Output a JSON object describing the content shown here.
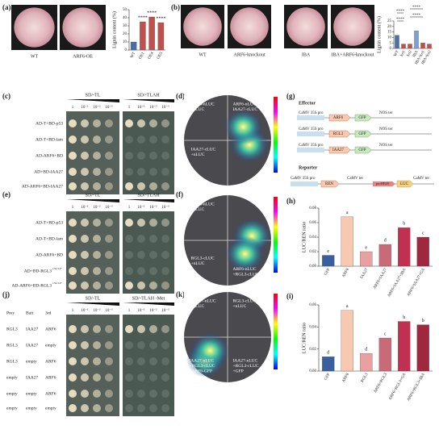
{
  "panels": {
    "a": {
      "label": "(a)",
      "photos": [
        "WT",
        "ARF6-OE"
      ],
      "chart": {
        "type": "bar",
        "ylabel": "Lignin content (%)",
        "categories": [
          "WT",
          "OE1",
          "OE4",
          "OE5"
        ],
        "values": [
          10,
          35,
          41,
          34
        ],
        "colors": [
          "#4a6fa8",
          "#c0504d",
          "#c0504d",
          "#c0504d"
        ],
        "ylim": [
          0,
          50
        ],
        "yticks": [
          0,
          10,
          20,
          30,
          40,
          50
        ],
        "annotations": [
          null,
          "****",
          "****",
          "****"
        ]
      }
    },
    "b": {
      "label": "(b)",
      "photos": [
        "WT",
        "ARF6-knockout",
        "IBA",
        "IBA+ARF6-knockout"
      ],
      "chart": {
        "type": "bar",
        "ylabel": "Lignin content (%)",
        "categories": [
          "WT",
          "ko1",
          "ko2",
          "IBA",
          "IBA+ko1",
          "IBA+ko2"
        ],
        "values": [
          12,
          4,
          4,
          16,
          5,
          4
        ],
        "colors": [
          "#4a6fa8",
          "#c0504d",
          "#c0504d",
          "#7f9fd0",
          "#c0504d",
          "#c0504d"
        ],
        "ylim": [
          0,
          25
        ],
        "yticks": [
          0,
          5,
          10,
          15,
          20,
          25
        ],
        "comparisons": [
          "****",
          "****",
          "****",
          "****"
        ]
      }
    },
    "c": {
      "label": "(c)",
      "media": [
        "SD/-TL",
        "SD/-TLAH"
      ],
      "dilutions": [
        "1",
        "10⁻¹",
        "10⁻²",
        "10⁻³"
      ],
      "rows": [
        "AD-T+BD-p53",
        "AD-T+BD-lam",
        "AD-ARF6+BD",
        "AD+BD-IAA27",
        "AD-ARF6+BD-IAA27"
      ]
    },
    "d": {
      "label": "(d)",
      "quadrants": [
        [
          "ARF6-nLUC",
          "+cLUC"
        ],
        [
          "ARF6-nLUC+",
          "IAA27-cLUC"
        ],
        [
          "IAA27-cLUC",
          "+nLUC"
        ]
      ]
    },
    "g": {
      "label": "(g)",
      "effector": "Effector",
      "constructs": [
        [
          "CaMV 35S pro",
          "ARF6",
          "GFP",
          "NOS ter"
        ],
        [
          "CaMV 35S pro",
          "RGL3",
          "GFP",
          "NOS ter"
        ],
        [
          "CaMV 35S pro",
          "IAA27",
          "GFP",
          "NOS ter"
        ]
      ],
      "reporter": "Reporter",
      "reporter_construct": [
        "CaMV 35S pro",
        "REN",
        "CaMV ter",
        "proHB49",
        "LUC",
        "CaMV ter"
      ]
    },
    "e": {
      "label": "(e)",
      "media": [
        "SD/-TL",
        "SD/-TLAH"
      ],
      "dilutions": [
        "1",
        "10⁻¹",
        "10⁻²",
        "10⁻³"
      ],
      "rows": [
        "AD-T+BD-p53",
        "AD-T+BD-lam",
        "AD-ARF6+BD",
        "AD+BD-RGL3",
        "AD-ARF6+BD-RGL3"
      ],
      "rows_sup": [
        null,
        null,
        null,
        "132-547",
        "132-547"
      ]
    },
    "f": {
      "label": "(f)",
      "quadrants": [
        [
          "ARF6-nLUC",
          "+cLUC"
        ],
        [
          "RGL3-cLUC",
          "+nLUC"
        ],
        [
          "ARF6-nLUC",
          "+RGL3-cLUC"
        ]
      ]
    },
    "h": {
      "label": "(h)",
      "chart": {
        "type": "bar",
        "ylabel": "LUC/REN ratio",
        "categories": [
          "GFP",
          "ARF6",
          "IAA27",
          "ARF6+IAA27",
          "ARF6+IAA27+IBA",
          "ARF6+IAA27+GA"
        ],
        "values": [
          0.015,
          0.068,
          0.02,
          0.03,
          0.053,
          0.04
        ],
        "colors": [
          "#3a5f9e",
          "#f6c9b0",
          "#e8a0a0",
          "#c86a78",
          "#c03050",
          "#a0283e"
        ],
        "ylim": [
          0,
          0.08
        ],
        "yticks": [
          {
            "value": 0,
            "label": "0.00"
          },
          {
            "value": 0.02,
            "label": "0.02"
          },
          {
            "value": 0.04,
            "label": "0.04"
          },
          {
            "value": 0.06,
            "label": "0.06"
          },
          {
            "value": 0.08,
            "label": "0.08"
          }
        ],
        "annotations": [
          "e",
          "a",
          "e",
          "d",
          "b",
          "c"
        ]
      }
    },
    "j": {
      "label": "(j)",
      "media": [
        "SD/-TL",
        "SD/-TLAH -Met"
      ],
      "dilutions": [
        "1",
        "10⁻¹",
        "10⁻²",
        "10⁻³"
      ],
      "columns": [
        "Prey",
        "Bait",
        "3rd"
      ],
      "rows": [
        [
          "RGL3",
          "IAA27",
          "ARF6"
        ],
        [
          "RGL3",
          "IAA27",
          "empty"
        ],
        [
          "RGL3",
          "empty",
          "ARF6"
        ],
        [
          "empty",
          "IAA27",
          "ARF6"
        ],
        [
          "empty",
          "empty",
          "ARF6"
        ],
        [
          "empty",
          "empty",
          "empty"
        ]
      ]
    },
    "k": {
      "label": "(k)",
      "quadrants": [
        [
          "IAA27-nLUC",
          "+cLUC"
        ],
        [
          "RGL3-cLUC",
          "+nLUC"
        ],
        [
          "IAA27-nLUC",
          "+RGL3-cLUC",
          "+ARF6-GFP"
        ],
        [
          "IAA27-nLUC",
          "+RGL3-cLUC",
          "+GFP"
        ]
      ]
    },
    "i": {
      "label": "(i)",
      "chart": {
        "type": "bar",
        "ylabel": "LUC/REN ratio",
        "categories": [
          "GFP",
          "ARF6",
          "RGL3",
          "ARF6+RGL3",
          "ARF6+RGL3+GA",
          "ARF6+RGL3+IBA"
        ],
        "values": [
          0.013,
          0.055,
          0.016,
          0.03,
          0.045,
          0.042
        ],
        "colors": [
          "#3a5f9e",
          "#f6c9b0",
          "#e8a0a0",
          "#c86a78",
          "#c03050",
          "#a0283e"
        ],
        "ylim": [
          0,
          0.06
        ],
        "yticks": [
          {
            "value": 0,
            "label": "0.00"
          },
          {
            "value": 0.02,
            "label": "0.02"
          },
          {
            "value": 0.04,
            "label": "0.04"
          },
          {
            "value": 0.06,
            "label": "0.06"
          }
        ],
        "annotations": [
          "d",
          "a",
          "d",
          "c",
          "b",
          "b"
        ]
      }
    }
  }
}
